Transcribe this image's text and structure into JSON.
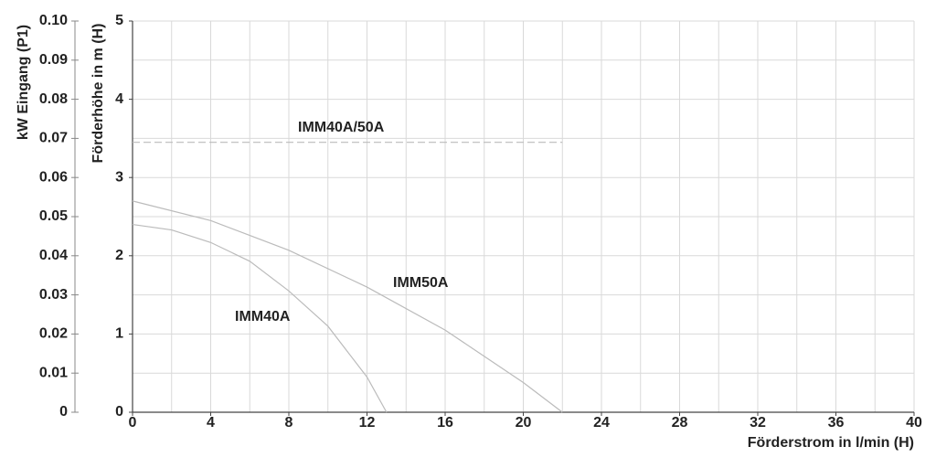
{
  "chart_data": {
    "type": "line",
    "xlabel": "Förderstrom in l/min (H)",
    "ylabel": "Förderhöhe in m (H)",
    "y2label": "kW Eingang (P1)",
    "xlim": [
      0,
      40
    ],
    "xticks": [
      0,
      4,
      8,
      12,
      16,
      20,
      24,
      28,
      32,
      36,
      40
    ],
    "xgrid": [
      0,
      2,
      4,
      6,
      8,
      10,
      12,
      14,
      16,
      18,
      20,
      22,
      24,
      26,
      28,
      30,
      32,
      34,
      36,
      38,
      40
    ],
    "ylim": [
      0,
      5
    ],
    "yticks": [
      0,
      1,
      2,
      3,
      4,
      5
    ],
    "ygrid": [
      0,
      0.5,
      1,
      1.5,
      2,
      2.5,
      3,
      3.5,
      4,
      4.5,
      5
    ],
    "y2lim": [
      0,
      0.1
    ],
    "y2ticks": [
      0,
      0.01,
      0.02,
      0.03,
      0.04,
      0.05,
      0.06,
      0.07,
      0.08,
      0.09,
      {
        "value": 0.1,
        "label": "0.10"
      }
    ],
    "grid": true,
    "series": [
      {
        "name": "IMM40A",
        "color": "#bbbbbb",
        "dash": false,
        "x": [
          0,
          2,
          4,
          6,
          8,
          10,
          12,
          13
        ],
        "values": [
          2.4,
          2.33,
          2.17,
          1.93,
          1.55,
          1.1,
          0.45,
          0
        ]
      },
      {
        "name": "IMM50A",
        "color": "#bbbbbb",
        "dash": false,
        "x": [
          0,
          4,
          8,
          12,
          16,
          20,
          22
        ],
        "values": [
          2.7,
          2.45,
          2.07,
          1.6,
          1.05,
          0.38,
          0
        ]
      },
      {
        "name": "IMM40A/50A",
        "color": "#bbbbbb",
        "dash": true,
        "axis": "y2",
        "x": [
          0,
          22
        ],
        "values": [
          0.069,
          0.069
        ]
      }
    ]
  }
}
